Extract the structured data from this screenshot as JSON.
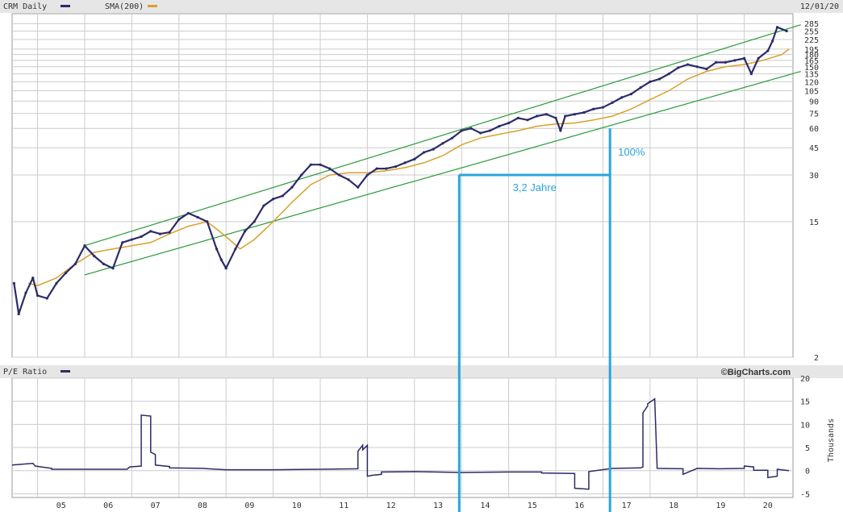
{
  "header": {
    "series_label": "CRM Daily",
    "sma_label": "SMA(200)",
    "date": "12/01/20"
  },
  "lower_panel": {
    "label": "P/E Ratio",
    "credit": "©BigCharts.com",
    "units_label": "Thousands"
  },
  "annotations": {
    "duration": "3,2 Jahre",
    "gain": "100%"
  },
  "colors": {
    "price": "#2b2b6b",
    "sma": "#d9a02a",
    "channel": "#2a9a3a",
    "annotation": "#2aa4dc",
    "grid": "#cccccc",
    "header_bg": "#e6e6e6"
  },
  "chart_data": [
    {
      "type": "line",
      "scale": "log",
      "x_ticks": [
        "05",
        "06",
        "07",
        "08",
        "09",
        "10",
        "11",
        "12",
        "13",
        "14",
        "15",
        "16",
        "17",
        "18",
        "19",
        "20"
      ],
      "y_ticks": [
        285,
        255,
        225,
        195,
        180,
        165,
        150,
        135,
        120,
        105,
        90,
        75,
        60,
        45,
        30,
        15,
        2
      ],
      "series": [
        {
          "name": "CRM Daily",
          "x": [
            2004.5,
            2004.6,
            2004.75,
            2004.9,
            2005.0,
            2005.2,
            2005.4,
            2005.6,
            2005.8,
            2006.0,
            2006.2,
            2006.4,
            2006.6,
            2006.8,
            2007.0,
            2007.2,
            2007.4,
            2007.6,
            2007.8,
            2008.0,
            2008.2,
            2008.4,
            2008.6,
            2008.8,
            2008.9,
            2009.0,
            2009.2,
            2009.4,
            2009.6,
            2009.8,
            2010.0,
            2010.2,
            2010.4,
            2010.6,
            2010.8,
            2011.0,
            2011.2,
            2011.4,
            2011.6,
            2011.8,
            2012.0,
            2012.2,
            2012.4,
            2012.6,
            2012.8,
            2013.0,
            2013.2,
            2013.4,
            2013.6,
            2013.8,
            2014.0,
            2014.2,
            2014.4,
            2014.6,
            2014.8,
            2015.0,
            2015.2,
            2015.4,
            2015.6,
            2015.8,
            2016.0,
            2016.1,
            2016.2,
            2016.4,
            2016.6,
            2016.8,
            2017.0,
            2017.2,
            2017.4,
            2017.6,
            2017.8,
            2018.0,
            2018.2,
            2018.4,
            2018.6,
            2018.8,
            2019.0,
            2019.2,
            2019.4,
            2019.6,
            2019.8,
            2020.0,
            2020.15,
            2020.3,
            2020.5,
            2020.6,
            2020.7,
            2020.9
          ],
          "y": [
            6.0,
            3.8,
            5.2,
            6.5,
            5.0,
            4.8,
            6.0,
            7.0,
            8.0,
            10.5,
            9.0,
            8.0,
            7.5,
            11.0,
            11.5,
            12.0,
            13.0,
            12.5,
            12.8,
            15.5,
            17.0,
            16.0,
            15.0,
            10.0,
            8.5,
            7.5,
            10.0,
            13.0,
            15.0,
            19.0,
            21.0,
            22.0,
            25.0,
            30.0,
            35.0,
            35.0,
            33.0,
            30.0,
            28.0,
            25.0,
            30.0,
            33.0,
            33.0,
            34.0,
            36.0,
            38.0,
            42.0,
            44.0,
            48.0,
            52.0,
            58.0,
            60.0,
            56.0,
            58.0,
            62.0,
            65.0,
            70.0,
            68.0,
            72.0,
            74.0,
            70.0,
            58.0,
            72.0,
            74.0,
            76.0,
            80.0,
            82.0,
            88.0,
            95.0,
            100.0,
            110.0,
            120.0,
            125.0,
            135.0,
            148.0,
            155.0,
            150.0,
            145.0,
            160.0,
            160.0,
            165.0,
            170.0,
            135.0,
            170.0,
            190.0,
            220.0,
            270.0,
            255.0
          ]
        },
        {
          "name": "SMA(200)",
          "x": [
            2004.8,
            2005.0,
            2005.4,
            2005.8,
            2006.2,
            2006.6,
            2007.0,
            2007.4,
            2007.8,
            2008.2,
            2008.6,
            2009.0,
            2009.3,
            2009.6,
            2010.0,
            2010.4,
            2010.8,
            2011.2,
            2011.6,
            2012.0,
            2012.4,
            2012.8,
            2013.2,
            2013.6,
            2014.0,
            2014.4,
            2014.8,
            2015.2,
            2015.6,
            2016.0,
            2016.4,
            2016.8,
            2017.2,
            2017.6,
            2018.0,
            2018.4,
            2018.8,
            2019.2,
            2019.6,
            2020.0,
            2020.4,
            2020.8,
            2020.95
          ],
          "y": [
            6.0,
            5.8,
            6.5,
            8.0,
            9.5,
            10.0,
            10.5,
            11.0,
            12.5,
            14.0,
            15.0,
            12.0,
            10.0,
            11.5,
            15.0,
            20.0,
            26.0,
            30.0,
            31.0,
            31.0,
            32.0,
            33.5,
            36.0,
            40.0,
            47.0,
            52.0,
            55.0,
            58.0,
            62.0,
            64.0,
            65.0,
            68.0,
            72.0,
            80.0,
            92.0,
            105.0,
            125.0,
            140.0,
            150.0,
            155.0,
            165.0,
            180.0,
            195.0
          ]
        }
      ],
      "channel_lines": [
        {
          "x": [
            2006.0,
            2021.2
          ],
          "y": [
            10.5,
            280.0
          ]
        },
        {
          "x": [
            2006.0,
            2021.2
          ],
          "y": [
            6.8,
            140.0
          ]
        }
      ],
      "annotation_lines": {
        "horizontal": {
          "x": [
            2013.95,
            2017.15
          ],
          "y": 30
        },
        "vertical_left_x": 2013.95,
        "vertical_right": {
          "x": 2017.15,
          "y_top": 60
        }
      }
    },
    {
      "type": "line",
      "ylabel": "Thousands",
      "y_ticks": [
        20,
        15,
        10,
        5,
        0,
        -5
      ],
      "ylim": [
        -5.8,
        20
      ],
      "series": [
        {
          "name": "P/E Ratio",
          "x": [
            2004.45,
            2004.9,
            2004.95,
            2005.3,
            2005.3,
            2006.5,
            2006.9,
            2006.95,
            2007.2,
            2007.2,
            2007.4,
            2007.4,
            2007.5,
            2007.5,
            2007.8,
            2007.8,
            2008.5,
            2009.0,
            2010.0,
            2011.0,
            2011.8,
            2011.8,
            2011.9,
            2011.9,
            2012.0,
            2012.0,
            2012.1,
            2012.3,
            2012.3,
            2013.0,
            2014.0,
            2015.0,
            2015.7,
            2015.7,
            2016.4,
            2016.4,
            2016.7,
            2016.7,
            2017.2,
            2017.8,
            2017.85,
            2017.85,
            2017.95,
            2017.95,
            2018.1,
            2018.15,
            2018.15,
            2018.7,
            2018.7,
            2019.0,
            2019.5,
            2020.0,
            2020.0,
            2020.2,
            2020.2,
            2020.5,
            2020.5,
            2020.7,
            2020.7,
            2020.95
          ],
          "y": [
            1.2,
            1.6,
            1.0,
            0.5,
            0.3,
            0.3,
            0.3,
            0.8,
            1.0,
            12.0,
            11.8,
            4.0,
            3.5,
            1.2,
            0.9,
            0.6,
            0.5,
            0.2,
            0.2,
            0.3,
            0.4,
            4.2,
            5.5,
            4.5,
            5.5,
            -1.2,
            -1.0,
            -0.8,
            -0.3,
            -0.2,
            -0.4,
            -0.3,
            -0.3,
            -0.5,
            -0.6,
            -3.8,
            -4.0,
            -0.2,
            0.5,
            0.6,
            0.8,
            12.5,
            14.0,
            14.5,
            15.5,
            0.6,
            0.5,
            0.4,
            -0.8,
            0.5,
            0.4,
            0.5,
            1.0,
            0.8,
            0.1,
            0.1,
            -1.5,
            -1.2,
            0.3,
            0.0
          ]
        }
      ]
    }
  ]
}
